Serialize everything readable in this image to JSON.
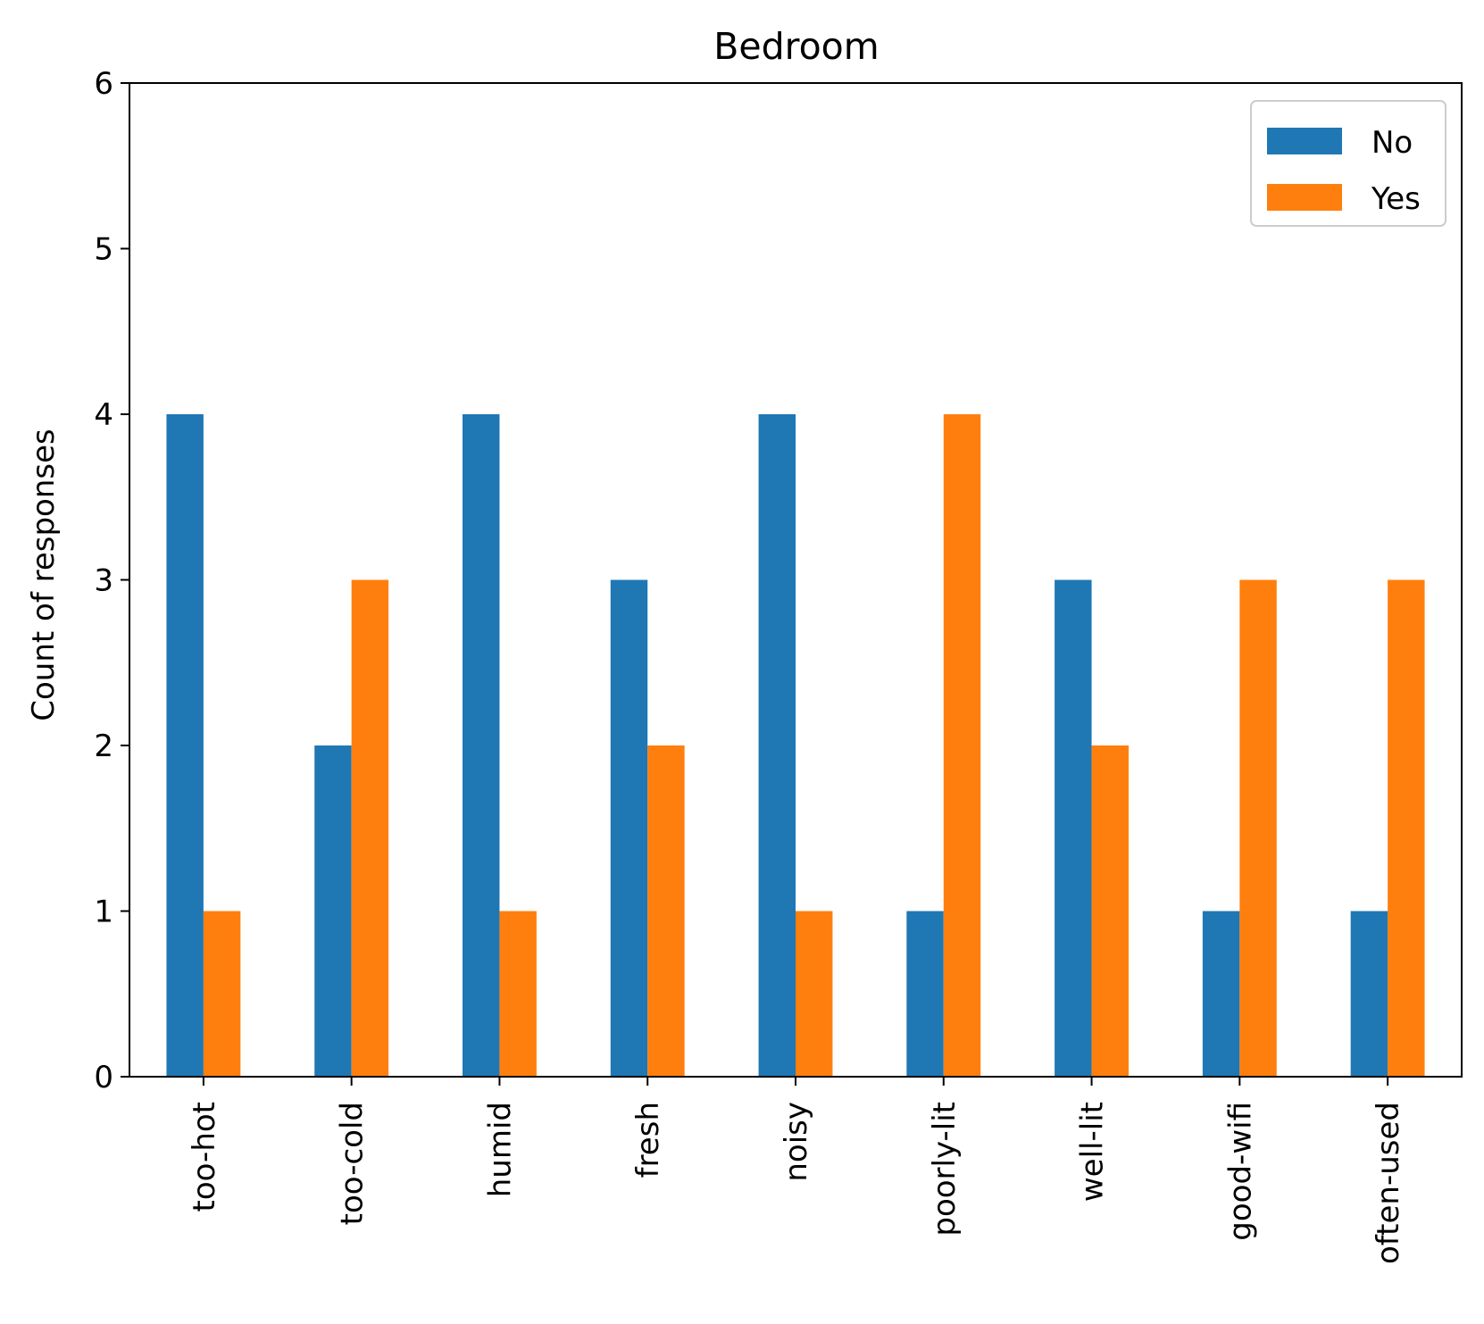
{
  "chart_data": {
    "type": "bar",
    "title": "Bedroom",
    "xlabel": "",
    "ylabel": "Count of responses",
    "categories": [
      "too-hot",
      "too-cold",
      "humid",
      "fresh",
      "noisy",
      "poorly-lit",
      "well-lit",
      "good-wifi",
      "often-used"
    ],
    "series": [
      {
        "name": "No",
        "color": "#1f77b4",
        "values": [
          4,
          2,
          4,
          3,
          4,
          1,
          3,
          1,
          1
        ]
      },
      {
        "name": "Yes",
        "color": "#ff7f0e",
        "values": [
          1,
          3,
          1,
          2,
          1,
          4,
          2,
          3,
          3
        ]
      }
    ],
    "ylim": [
      0,
      6
    ],
    "yticks": [
      0,
      1,
      2,
      3,
      4,
      5,
      6
    ],
    "grid": false,
    "legend_position": "top-right"
  }
}
